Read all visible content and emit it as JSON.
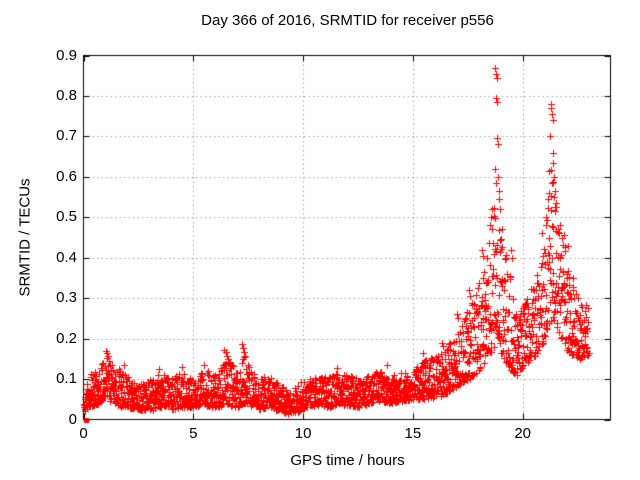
{
  "page": {
    "background": "#ffffff"
  },
  "chart_data": {
    "type": "scatter",
    "title": "Day 366 of 2016, SRMTID for receiver p556",
    "xlabel": "GPS time / hours",
    "ylabel": "SRMTID / TECUs",
    "xlim": [
      0,
      24
    ],
    "ylim": [
      0,
      0.9
    ],
    "xticks": [
      0,
      5,
      10,
      15,
      20
    ],
    "yticks": [
      0,
      0.1,
      0.2,
      0.3,
      0.4,
      0.5,
      0.6,
      0.7,
      0.8,
      0.9
    ],
    "grid": "dotted",
    "legend": "none",
    "colors": {
      "marker": "#ff0000",
      "grid": "#a0a0a0",
      "frame": "#000000",
      "text": "#000000"
    },
    "marker": {
      "glyph": "plus",
      "size": 7
    },
    "series_name": "SRMTID",
    "data_time_range_hours": [
      0.02,
      23.0
    ],
    "n_points": 2300,
    "seed": 20161231,
    "origin_point": [
      0.13,
      0.0
    ],
    "envelope": [
      [
        0.05,
        0.02,
        0.09
      ],
      [
        0.3,
        0.03,
        0.115
      ],
      [
        0.7,
        0.04,
        0.13
      ],
      [
        1.0,
        0.05,
        0.16
      ],
      [
        1.3,
        0.045,
        0.145
      ],
      [
        1.7,
        0.03,
        0.12
      ],
      [
        2.0,
        0.03,
        0.11
      ],
      [
        2.5,
        0.022,
        0.085
      ],
      [
        3.0,
        0.02,
        0.095
      ],
      [
        3.5,
        0.03,
        0.115
      ],
      [
        4.0,
        0.025,
        0.1
      ],
      [
        4.5,
        0.03,
        0.12
      ],
      [
        5.0,
        0.03,
        0.1
      ],
      [
        5.5,
        0.035,
        0.125
      ],
      [
        6.0,
        0.03,
        0.11
      ],
      [
        6.5,
        0.035,
        0.15
      ],
      [
        7.0,
        0.03,
        0.125
      ],
      [
        7.3,
        0.04,
        0.16
      ],
      [
        7.7,
        0.03,
        0.115
      ],
      [
        8.0,
        0.025,
        0.105
      ],
      [
        8.5,
        0.03,
        0.11
      ],
      [
        9.0,
        0.02,
        0.085
      ],
      [
        9.4,
        0.012,
        0.065
      ],
      [
        9.8,
        0.02,
        0.09
      ],
      [
        10.2,
        0.03,
        0.1
      ],
      [
        10.7,
        0.035,
        0.105
      ],
      [
        11.2,
        0.03,
        0.11
      ],
      [
        11.6,
        0.04,
        0.12
      ],
      [
        12.0,
        0.035,
        0.11
      ],
      [
        12.5,
        0.03,
        0.105
      ],
      [
        13.0,
        0.04,
        0.115
      ],
      [
        13.5,
        0.045,
        0.12
      ],
      [
        14.0,
        0.04,
        0.11
      ],
      [
        14.5,
        0.045,
        0.115
      ],
      [
        15.0,
        0.05,
        0.12
      ],
      [
        15.5,
        0.05,
        0.15
      ],
      [
        16.0,
        0.055,
        0.155
      ],
      [
        16.4,
        0.06,
        0.17
      ],
      [
        16.8,
        0.07,
        0.2
      ],
      [
        17.2,
        0.09,
        0.26
      ],
      [
        17.6,
        0.1,
        0.29
      ],
      [
        18.0,
        0.12,
        0.34
      ],
      [
        18.4,
        0.15,
        0.46
      ],
      [
        18.7,
        0.18,
        0.58
      ],
      [
        18.9,
        0.18,
        0.53
      ],
      [
        19.1,
        0.15,
        0.43
      ],
      [
        19.4,
        0.13,
        0.38
      ],
      [
        19.7,
        0.1,
        0.26
      ],
      [
        20.0,
        0.13,
        0.28
      ],
      [
        20.4,
        0.15,
        0.33
      ],
      [
        20.8,
        0.17,
        0.38
      ],
      [
        21.1,
        0.22,
        0.5
      ],
      [
        21.35,
        0.25,
        0.64
      ],
      [
        21.6,
        0.22,
        0.5
      ],
      [
        21.9,
        0.18,
        0.43
      ],
      [
        22.2,
        0.16,
        0.34
      ],
      [
        22.6,
        0.15,
        0.3
      ],
      [
        23.0,
        0.16,
        0.28
      ]
    ],
    "outliers": [
      [
        1.02,
        0.17
      ],
      [
        1.08,
        0.165
      ],
      [
        1.12,
        0.158
      ],
      [
        1.85,
        0.135
      ],
      [
        3.45,
        0.125
      ],
      [
        4.5,
        0.13
      ],
      [
        5.5,
        0.135
      ],
      [
        6.42,
        0.172
      ],
      [
        6.47,
        0.166
      ],
      [
        6.52,
        0.158
      ],
      [
        6.6,
        0.15
      ],
      [
        7.22,
        0.186
      ],
      [
        7.27,
        0.178
      ],
      [
        7.32,
        0.168
      ],
      [
        7.37,
        0.158
      ],
      [
        11.55,
        0.128
      ],
      [
        13.8,
        0.135
      ],
      [
        15.45,
        0.165
      ],
      [
        16.32,
        0.19
      ],
      [
        16.36,
        0.182
      ],
      [
        17.02,
        0.26
      ],
      [
        17.05,
        0.25
      ],
      [
        17.55,
        0.32
      ],
      [
        17.6,
        0.305
      ],
      [
        18.15,
        0.42
      ],
      [
        18.18,
        0.405
      ],
      [
        18.55,
        0.5
      ],
      [
        18.6,
        0.52
      ],
      [
        18.76,
        0.87
      ],
      [
        18.79,
        0.855
      ],
      [
        18.81,
        0.845
      ],
      [
        18.78,
        0.795
      ],
      [
        18.83,
        0.785
      ],
      [
        18.84,
        0.695
      ],
      [
        18.86,
        0.68
      ],
      [
        18.74,
        0.62
      ],
      [
        18.88,
        0.6
      ],
      [
        18.8,
        0.585
      ],
      [
        18.9,
        0.565
      ],
      [
        18.92,
        0.545
      ],
      [
        18.96,
        0.52
      ],
      [
        19.05,
        0.47
      ],
      [
        19.45,
        0.42
      ],
      [
        19.5,
        0.4
      ],
      [
        20.9,
        0.46
      ],
      [
        21.05,
        0.5
      ],
      [
        21.27,
        0.78
      ],
      [
        21.3,
        0.77
      ],
      [
        21.33,
        0.755
      ],
      [
        21.36,
        0.74
      ],
      [
        21.24,
        0.7
      ],
      [
        21.4,
        0.66
      ],
      [
        21.38,
        0.635
      ],
      [
        21.21,
        0.615
      ],
      [
        21.44,
        0.6
      ],
      [
        21.34,
        0.585
      ],
      [
        21.48,
        0.565
      ],
      [
        21.16,
        0.545
      ],
      [
        21.52,
        0.525
      ],
      [
        21.7,
        0.48
      ],
      [
        21.9,
        0.455
      ],
      [
        22.05,
        0.43
      ],
      [
        22.3,
        0.35
      ]
    ]
  }
}
